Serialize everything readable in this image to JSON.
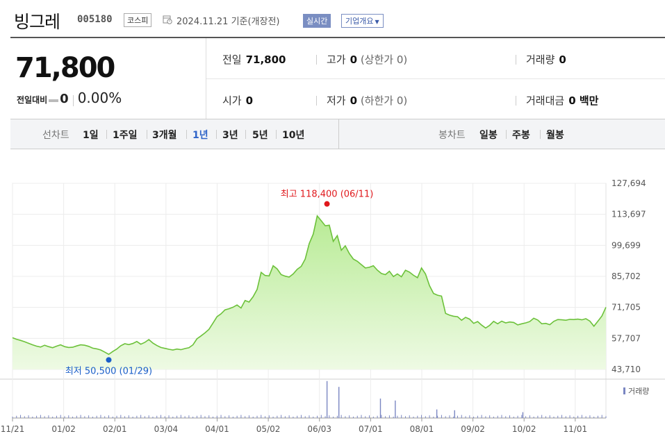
{
  "header": {
    "stock_name": "빙그레",
    "stock_code": "005180",
    "market": "코스피",
    "date_text": "2024.11.21 기준(개장전)",
    "realtime_label": "실시간",
    "overview_label": "기업개요"
  },
  "summary": {
    "price": "71,800",
    "compare_label": "전일대비",
    "change": "0",
    "change_pct": "0.00%",
    "prev_label": "전일",
    "prev_value": "71,800",
    "high_label": "고가",
    "high_value": "0",
    "high_limit": "(상한가 0)",
    "volume_label": "거래량",
    "volume_value": "0",
    "open_label": "시가",
    "open_value": "0",
    "low_label": "저가",
    "low_value": "0",
    "low_limit": "(하한가 0)",
    "amount_label": "거래대금",
    "amount_value": "0 백만"
  },
  "period_tabs": {
    "line_label": "선차트",
    "line_items": [
      "1일",
      "1주일",
      "3개월",
      "1년",
      "3년",
      "5년",
      "10년"
    ],
    "active": "1년",
    "candle_label": "봉차트",
    "candle_items": [
      "일봉",
      "주봉",
      "월봉"
    ]
  },
  "colors": {
    "line": "#6cc13a",
    "fill_top": "#b8eb95",
    "fill_bottom": "#eefae4",
    "high_marker": "#e0181c",
    "low_marker": "#1b5fc9",
    "active_tab": "#2f64c8",
    "volume_bar": "#7a86c2"
  },
  "chart_data": {
    "type": "area",
    "x_ticks": [
      "11/21",
      "01/02",
      "02/01",
      "03/04",
      "04/01",
      "05/02",
      "06/03",
      "07/01",
      "08/01",
      "09/02",
      "10/02",
      "11/01"
    ],
    "y_ticks": [
      "127,694",
      "113,697",
      "99,699",
      "85,702",
      "71,705",
      "57,707",
      "43,710"
    ],
    "ylim": [
      43710,
      127694
    ],
    "series": [
      {
        "values": [
          58000,
          57300,
          56800,
          56200,
          55500,
          54800,
          54200,
          53800,
          54600,
          54000,
          53500,
          54200,
          54800,
          54000,
          53600,
          53700,
          54300,
          54800,
          54600,
          54100,
          53300,
          53000,
          52500,
          51500,
          50500,
          51800,
          52900,
          54400,
          55300,
          54900,
          55400,
          56300,
          55100,
          55900,
          57200,
          55600,
          54500,
          53600,
          53200,
          52800,
          52500,
          52900,
          52600,
          53100,
          53500,
          54800,
          57500,
          58800,
          60200,
          61800,
          64600,
          67500,
          68800,
          70600,
          71100,
          71800,
          72800,
          71400,
          74800,
          74100,
          76500,
          79800,
          87500,
          86100,
          85900,
          90500,
          89100,
          86500,
          85800,
          85400,
          86800,
          88900,
          90200,
          93500,
          100500,
          104800,
          113000,
          110800,
          108500,
          108800,
          101500,
          104100,
          97500,
          99500,
          96000,
          93500,
          92500,
          91000,
          89500,
          89800,
          90500,
          88500,
          87000,
          86500,
          88000,
          85600,
          86800,
          85500,
          88500,
          87600,
          86200,
          85100,
          89500,
          86800,
          81500,
          78000,
          77200,
          76800,
          69000,
          68200,
          67700,
          67500,
          65900,
          67200,
          66400,
          64500,
          65300,
          63700,
          62400,
          63600,
          65400,
          64300,
          65500,
          64700,
          65100,
          64900,
          63800,
          64300,
          64700,
          65300,
          66800,
          66000,
          64300,
          64500,
          63900,
          65400,
          66200,
          66100,
          65900,
          66300,
          66200,
          66400,
          66100,
          66600,
          65500,
          63200,
          65500,
          67800,
          71800
        ]
      }
    ],
    "high_label": "최고 118,400 (06/11)",
    "low_label": "최저 50,500 (01/29)",
    "volume_legend": "거래량",
    "volume_spikes": [
      {
        "at": 0.53,
        "level": 0.95
      },
      {
        "at": 0.55,
        "level": 0.8
      },
      {
        "at": 0.62,
        "level": 0.5
      },
      {
        "at": 0.645,
        "level": 0.45
      },
      {
        "at": 0.86,
        "level": 0.15
      },
      {
        "at": 0.715,
        "level": 0.22
      },
      {
        "at": 0.745,
        "level": 0.2
      }
    ],
    "grid": true
  }
}
